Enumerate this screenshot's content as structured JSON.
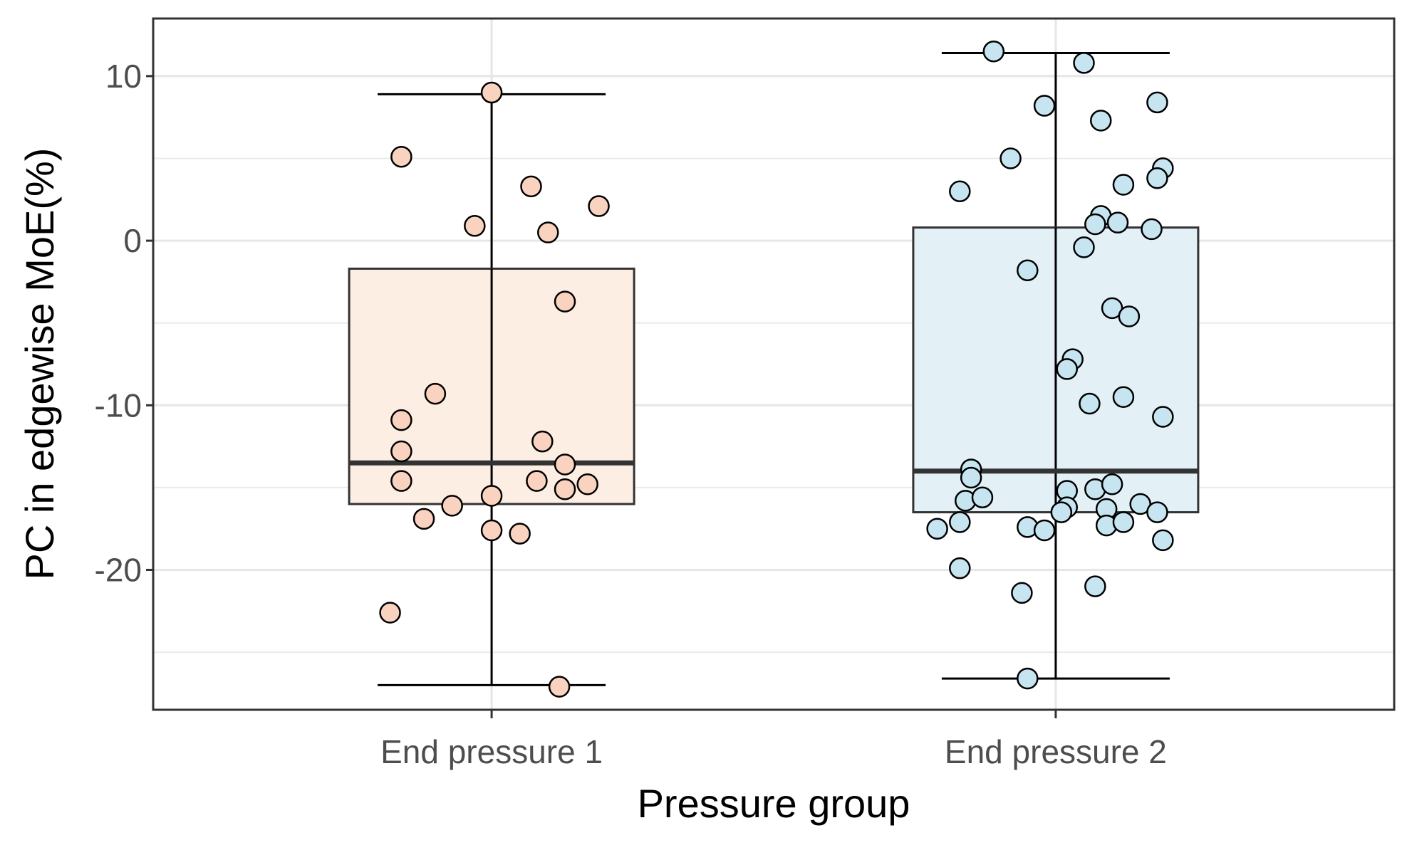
{
  "chart_data": {
    "type": "boxplot",
    "title": "",
    "xlabel": "Pressure group",
    "ylabel": "PC in edgewise MoE(%)",
    "ylim": [
      -28.5,
      13.5
    ],
    "yticks": [
      10,
      0,
      -10,
      -20
    ],
    "ytick_labels": [
      "10",
      "0",
      "-10",
      "-20"
    ],
    "y_minor_gridlines": [
      5,
      -5,
      -15,
      -25
    ],
    "grid": true,
    "legend": "none",
    "categories": [
      "End pressure 1",
      "End pressure 2"
    ],
    "groups": [
      {
        "name": "End pressure 1",
        "fill": "#fdeee4",
        "point_fill": "#f9d3bf",
        "box": {
          "q1": -16.0,
          "median": -13.5,
          "q3": -1.7,
          "whisker_low": -27.0,
          "whisker_high": 8.9
        },
        "points": [
          {
            "x": 0.84,
            "y": 5.1
          },
          {
            "x": 1.0,
            "y": 9.0
          },
          {
            "x": 1.07,
            "y": 3.3
          },
          {
            "x": 1.19,
            "y": 2.1
          },
          {
            "x": 0.97,
            "y": 0.9
          },
          {
            "x": 1.1,
            "y": 0.5
          },
          {
            "x": 1.13,
            "y": -3.7
          },
          {
            "x": 0.9,
            "y": -9.3
          },
          {
            "x": 0.84,
            "y": -10.9
          },
          {
            "x": 0.84,
            "y": -12.8
          },
          {
            "x": 0.84,
            "y": -14.6
          },
          {
            "x": 1.09,
            "y": -12.2
          },
          {
            "x": 1.13,
            "y": -13.6
          },
          {
            "x": 1.08,
            "y": -14.6
          },
          {
            "x": 1.13,
            "y": -15.1
          },
          {
            "x": 1.17,
            "y": -14.8
          },
          {
            "x": 1.0,
            "y": -15.5
          },
          {
            "x": 0.93,
            "y": -16.1
          },
          {
            "x": 0.88,
            "y": -16.9
          },
          {
            "x": 1.0,
            "y": -17.6
          },
          {
            "x": 1.05,
            "y": -17.8
          },
          {
            "x": 0.82,
            "y": -22.6
          },
          {
            "x": 1.12,
            "y": -27.1
          }
        ]
      },
      {
        "name": "End pressure 2",
        "fill": "#e3f1f7",
        "point_fill": "#c7e4f1",
        "box": {
          "q1": -16.5,
          "median": -14.0,
          "q3": 0.8,
          "whisker_low": -26.6,
          "whisker_high": 11.4
        },
        "points": [
          {
            "x": 1.89,
            "y": 11.5
          },
          {
            "x": 2.05,
            "y": 10.8
          },
          {
            "x": 1.98,
            "y": 8.2
          },
          {
            "x": 2.18,
            "y": 8.4
          },
          {
            "x": 2.08,
            "y": 7.3
          },
          {
            "x": 1.92,
            "y": 5.0
          },
          {
            "x": 2.19,
            "y": 4.4
          },
          {
            "x": 2.18,
            "y": 3.8
          },
          {
            "x": 2.12,
            "y": 3.4
          },
          {
            "x": 1.83,
            "y": 3.0
          },
          {
            "x": 2.08,
            "y": 1.5
          },
          {
            "x": 2.07,
            "y": 1.0
          },
          {
            "x": 2.11,
            "y": 1.1
          },
          {
            "x": 2.17,
            "y": 0.7
          },
          {
            "x": 2.05,
            "y": -0.4
          },
          {
            "x": 1.95,
            "y": -1.8
          },
          {
            "x": 2.1,
            "y": -4.1
          },
          {
            "x": 2.13,
            "y": -4.6
          },
          {
            "x": 2.03,
            "y": -7.2
          },
          {
            "x": 2.02,
            "y": -7.8
          },
          {
            "x": 2.06,
            "y": -9.9
          },
          {
            "x": 2.12,
            "y": -9.5
          },
          {
            "x": 2.19,
            "y": -10.7
          },
          {
            "x": 1.85,
            "y": -13.9
          },
          {
            "x": 1.85,
            "y": -14.4
          },
          {
            "x": 1.84,
            "y": -15.8
          },
          {
            "x": 1.87,
            "y": -15.6
          },
          {
            "x": 2.02,
            "y": -15.2
          },
          {
            "x": 2.07,
            "y": -15.1
          },
          {
            "x": 2.1,
            "y": -14.8
          },
          {
            "x": 2.02,
            "y": -16.2
          },
          {
            "x": 2.01,
            "y": -16.5
          },
          {
            "x": 2.09,
            "y": -16.3
          },
          {
            "x": 2.15,
            "y": -16.0
          },
          {
            "x": 2.18,
            "y": -16.5
          },
          {
            "x": 1.79,
            "y": -17.5
          },
          {
            "x": 1.83,
            "y": -17.1
          },
          {
            "x": 1.95,
            "y": -17.4
          },
          {
            "x": 1.98,
            "y": -17.6
          },
          {
            "x": 2.09,
            "y": -17.3
          },
          {
            "x": 2.12,
            "y": -17.1
          },
          {
            "x": 2.19,
            "y": -18.2
          },
          {
            "x": 1.83,
            "y": -19.9
          },
          {
            "x": 1.94,
            "y": -21.4
          },
          {
            "x": 2.07,
            "y": -21.0
          },
          {
            "x": 1.95,
            "y": -26.6
          }
        ]
      }
    ]
  }
}
